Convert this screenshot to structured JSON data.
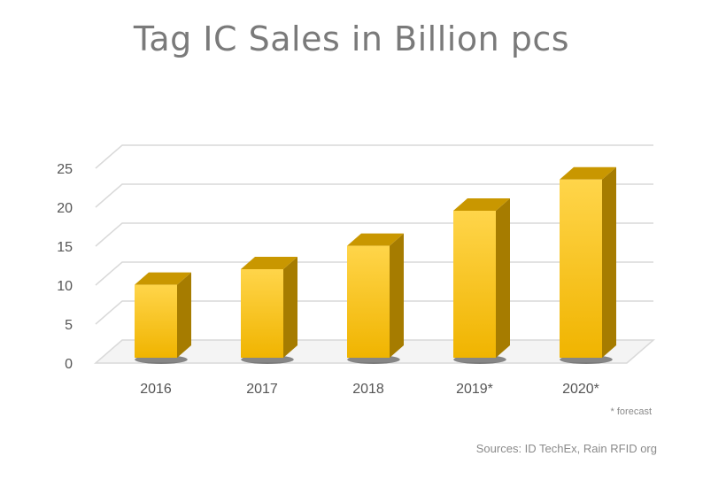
{
  "title": "Tag IC Sales in Billion pcs",
  "footnote": "* forecast",
  "sources": "Sources: ID TechEx,  Rain RFID org",
  "colors": {
    "bar_front_top": "#ffd54a",
    "bar_front_bottom": "#f0b400",
    "bar_side": "#a67c00",
    "bar_top": "#c99700",
    "grid": "#d9d9d9"
  },
  "chart_data": {
    "type": "bar",
    "categories": [
      "2016",
      "2017",
      "2018",
      "2019*",
      "2020*"
    ],
    "values": [
      10.5,
      12.5,
      15.5,
      20,
      24
    ],
    "ylim": [
      0,
      25
    ],
    "yticks": [
      "0",
      "5",
      "10",
      "15",
      "20",
      "25"
    ],
    "grid": true,
    "three_d": true
  }
}
